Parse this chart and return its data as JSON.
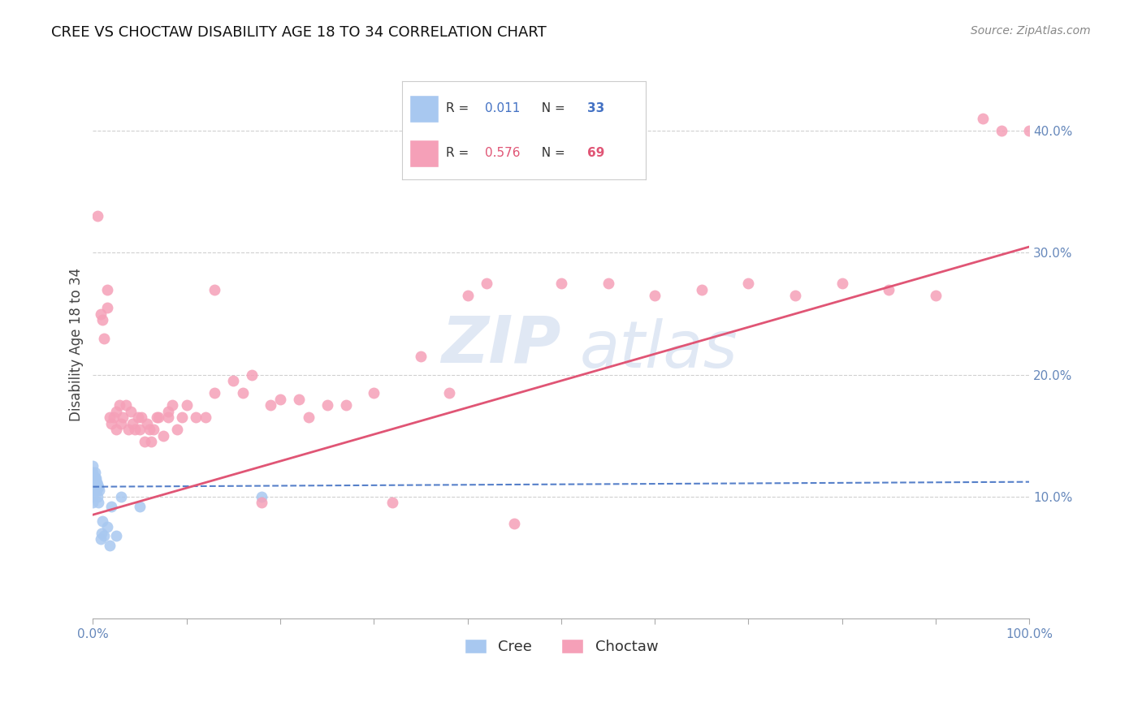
{
  "title": "CREE VS CHOCTAW DISABILITY AGE 18 TO 34 CORRELATION CHART",
  "source": "Source: ZipAtlas.com",
  "ylabel": "Disability Age 18 to 34",
  "xlim": [
    0,
    1.0
  ],
  "ylim": [
    0.0,
    0.45
  ],
  "y_ticks_right": [
    0.1,
    0.2,
    0.3,
    0.4
  ],
  "y_tick_labels_right": [
    "10.0%",
    "20.0%",
    "30.0%",
    "40.0%"
  ],
  "watermark_zip": "ZIP",
  "watermark_atlas": "atlas",
  "cree_color": "#a8c8f0",
  "choctaw_color": "#f5a0b8",
  "cree_line_color": "#4472c4",
  "choctaw_line_color": "#e05575",
  "cree_R": 0.011,
  "cree_N": 33,
  "choctaw_R": 0.576,
  "choctaw_N": 69,
  "cree_line_start_x": 0.0,
  "cree_line_start_y": 0.108,
  "cree_line_end_x": 1.0,
  "cree_line_end_y": 0.112,
  "choctaw_line_start_x": 0.0,
  "choctaw_line_start_y": 0.085,
  "choctaw_line_end_x": 1.0,
  "choctaw_line_end_y": 0.305,
  "cree_x": [
    0.0,
    0.0,
    0.0,
    0.0,
    0.0,
    0.0,
    0.0,
    0.0,
    0.0,
    0.0,
    0.002,
    0.002,
    0.002,
    0.003,
    0.003,
    0.004,
    0.004,
    0.005,
    0.005,
    0.006,
    0.006,
    0.007,
    0.008,
    0.009,
    0.01,
    0.012,
    0.015,
    0.018,
    0.02,
    0.025,
    0.03,
    0.05,
    0.18
  ],
  "cree_y": [
    0.125,
    0.12,
    0.115,
    0.112,
    0.11,
    0.108,
    0.106,
    0.105,
    0.1,
    0.095,
    0.12,
    0.115,
    0.11,
    0.115,
    0.108,
    0.112,
    0.105,
    0.11,
    0.1,
    0.108,
    0.095,
    0.105,
    0.065,
    0.07,
    0.08,
    0.068,
    0.075,
    0.06,
    0.092,
    0.068,
    0.1,
    0.092,
    0.1
  ],
  "choctaw_x": [
    0.005,
    0.008,
    0.01,
    0.012,
    0.015,
    0.018,
    0.02,
    0.022,
    0.025,
    0.025,
    0.028,
    0.03,
    0.032,
    0.035,
    0.038,
    0.04,
    0.042,
    0.045,
    0.048,
    0.05,
    0.052,
    0.055,
    0.058,
    0.06,
    0.062,
    0.065,
    0.068,
    0.07,
    0.075,
    0.08,
    0.085,
    0.09,
    0.095,
    0.1,
    0.11,
    0.12,
    0.13,
    0.15,
    0.16,
    0.17,
    0.18,
    0.19,
    0.2,
    0.22,
    0.23,
    0.25,
    0.27,
    0.3,
    0.32,
    0.35,
    0.38,
    0.4,
    0.42,
    0.45,
    0.5,
    0.55,
    0.6,
    0.65,
    0.7,
    0.75,
    0.8,
    0.85,
    0.9,
    0.95,
    0.97,
    1.0,
    0.015,
    0.13,
    0.08
  ],
  "choctaw_y": [
    0.33,
    0.25,
    0.245,
    0.23,
    0.27,
    0.165,
    0.16,
    0.165,
    0.17,
    0.155,
    0.175,
    0.16,
    0.165,
    0.175,
    0.155,
    0.17,
    0.16,
    0.155,
    0.165,
    0.155,
    0.165,
    0.145,
    0.16,
    0.155,
    0.145,
    0.155,
    0.165,
    0.165,
    0.15,
    0.165,
    0.175,
    0.155,
    0.165,
    0.175,
    0.165,
    0.165,
    0.185,
    0.195,
    0.185,
    0.2,
    0.095,
    0.175,
    0.18,
    0.18,
    0.165,
    0.175,
    0.175,
    0.185,
    0.095,
    0.215,
    0.185,
    0.265,
    0.275,
    0.078,
    0.275,
    0.275,
    0.265,
    0.27,
    0.275,
    0.265,
    0.275,
    0.27,
    0.265,
    0.41,
    0.4,
    0.4,
    0.255,
    0.27,
    0.17
  ],
  "background_color": "#ffffff",
  "grid_color": "#d0d0d0",
  "tick_color": "#6688bb",
  "title_fontsize": 13,
  "axis_label_fontsize": 11,
  "legend_fontsize": 13
}
